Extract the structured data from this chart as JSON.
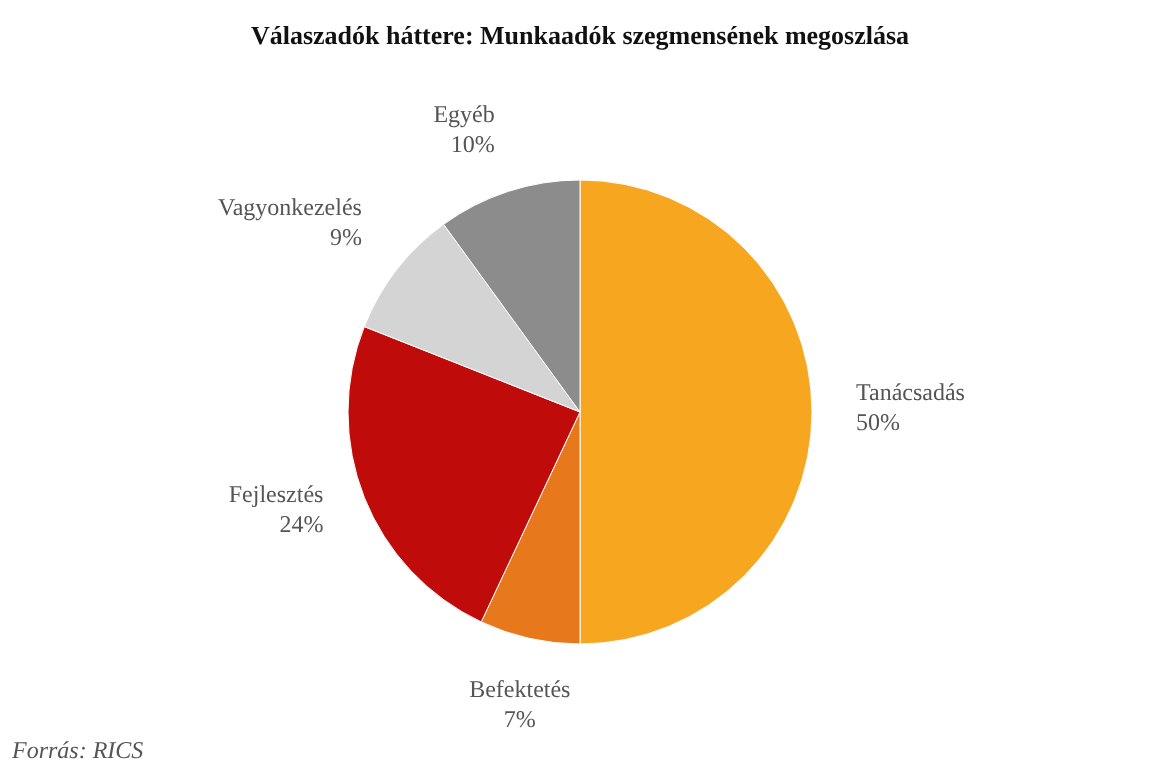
{
  "chart_data": {
    "type": "pie",
    "title": "Válaszadók háttere: Munkaadók szegmensének megoszlása",
    "categories": [
      "Tanácsadás",
      "Befektetés",
      "Fejlesztés",
      "Vagyonkezelés",
      "Egyéb"
    ],
    "values": [
      50,
      7,
      24,
      9,
      10
    ],
    "value_labels": [
      "50%",
      "7%",
      "24%",
      "9%",
      "10%"
    ],
    "colors": [
      "#f6a71f",
      "#e8781c",
      "#c00b0b",
      "#d4d4d4",
      "#8c8c8c"
    ],
    "annotations": [
      "Forrás: RICS"
    ]
  }
}
